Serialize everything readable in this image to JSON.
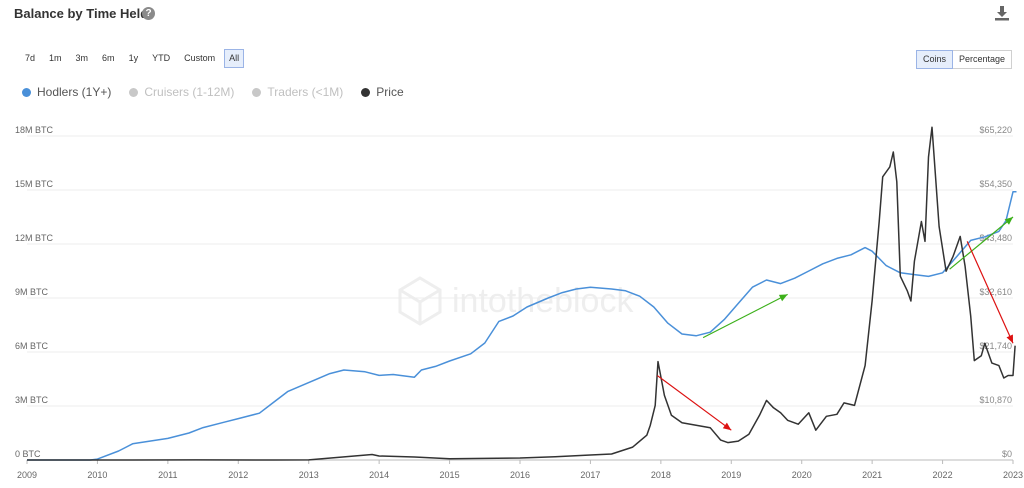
{
  "header": {
    "title": "Balance by Time Held",
    "help_icon": "?",
    "download_icon": "download-icon"
  },
  "ranges": [
    {
      "label": "7d",
      "active": false
    },
    {
      "label": "1m",
      "active": false
    },
    {
      "label": "3m",
      "active": false
    },
    {
      "label": "6m",
      "active": false
    },
    {
      "label": "1y",
      "active": false
    },
    {
      "label": "YTD",
      "active": false
    },
    {
      "label": "Custom",
      "active": false
    },
    {
      "label": "All",
      "active": true
    }
  ],
  "units": [
    {
      "label": "Coins",
      "active": true
    },
    {
      "label": "Percentage",
      "active": false
    }
  ],
  "legend": [
    {
      "name": "Hodlers (1Y+)",
      "color": "#4a90d9",
      "active": true
    },
    {
      "name": "Cruisers (1-12M)",
      "color": "#c8c8c8",
      "active": false
    },
    {
      "name": "Traders (<1M)",
      "color": "#c8c8c8",
      "active": false
    },
    {
      "name": "Price",
      "color": "#333333",
      "active": true
    }
  ],
  "watermark": "intotheblock",
  "chart_data": {
    "type": "line",
    "x_ticks": [
      "2009",
      "2010",
      "2011",
      "2012",
      "2013",
      "2014",
      "2015",
      "2016",
      "2017",
      "2018",
      "2019",
      "2020",
      "2021",
      "2022",
      "2023"
    ],
    "y_left_ticks": [
      "0 BTC",
      "3M BTC",
      "6M BTC",
      "9M BTC",
      "12M BTC",
      "15M BTC",
      "18M BTC"
    ],
    "y_right_ticks": [
      "$0",
      "$10,870",
      "$21,740",
      "$32,610",
      "$43,480",
      "$54,350",
      "$65,220"
    ],
    "ylim_left": [
      0,
      18000000
    ],
    "ylim_right": [
      0,
      65220
    ],
    "series": [
      {
        "name": "Hodlers (1Y+)",
        "axis": "left",
        "color": "#4a90d9",
        "points": [
          [
            2009.0,
            0
          ],
          [
            2009.9,
            0
          ],
          [
            2010.0,
            50000
          ],
          [
            2010.3,
            500000
          ],
          [
            2010.5,
            900000
          ],
          [
            2011.0,
            1200000
          ],
          [
            2011.3,
            1500000
          ],
          [
            2011.5,
            1800000
          ],
          [
            2011.8,
            2100000
          ],
          [
            2012.0,
            2300000
          ],
          [
            2012.3,
            2600000
          ],
          [
            2012.5,
            3200000
          ],
          [
            2012.7,
            3800000
          ],
          [
            2013.0,
            4300000
          ],
          [
            2013.3,
            4800000
          ],
          [
            2013.5,
            5000000
          ],
          [
            2013.8,
            4900000
          ],
          [
            2014.0,
            4700000
          ],
          [
            2014.2,
            4750000
          ],
          [
            2014.5,
            4600000
          ],
          [
            2014.6,
            5000000
          ],
          [
            2014.8,
            5200000
          ],
          [
            2015.0,
            5500000
          ],
          [
            2015.3,
            5900000
          ],
          [
            2015.5,
            6500000
          ],
          [
            2015.7,
            7700000
          ],
          [
            2015.9,
            8000000
          ],
          [
            2016.1,
            8500000
          ],
          [
            2016.4,
            9000000
          ],
          [
            2016.6,
            9300000
          ],
          [
            2016.8,
            9500000
          ],
          [
            2017.0,
            9600000
          ],
          [
            2017.3,
            9500000
          ],
          [
            2017.5,
            9400000
          ],
          [
            2017.7,
            9100000
          ],
          [
            2017.9,
            8500000
          ],
          [
            2018.1,
            7600000
          ],
          [
            2018.3,
            7000000
          ],
          [
            2018.5,
            6900000
          ],
          [
            2018.7,
            7100000
          ],
          [
            2018.9,
            7800000
          ],
          [
            2019.1,
            8700000
          ],
          [
            2019.3,
            9600000
          ],
          [
            2019.5,
            10000000
          ],
          [
            2019.7,
            9800000
          ],
          [
            2019.9,
            10100000
          ],
          [
            2020.1,
            10500000
          ],
          [
            2020.3,
            10900000
          ],
          [
            2020.5,
            11200000
          ],
          [
            2020.7,
            11400000
          ],
          [
            2020.9,
            11800000
          ],
          [
            2021.0,
            11600000
          ],
          [
            2021.2,
            10800000
          ],
          [
            2021.4,
            10400000
          ],
          [
            2021.6,
            10300000
          ],
          [
            2021.8,
            10200000
          ],
          [
            2022.0,
            10400000
          ],
          [
            2022.2,
            11300000
          ],
          [
            2022.4,
            12200000
          ],
          [
            2022.6,
            12400000
          ],
          [
            2022.8,
            12700000
          ],
          [
            2022.9,
            13300000
          ],
          [
            2023.0,
            14900000
          ],
          [
            2023.05,
            14900000
          ]
        ]
      },
      {
        "name": "Price",
        "axis": "right",
        "color": "#333333",
        "points": [
          [
            2009.0,
            0
          ],
          [
            2010.5,
            10
          ],
          [
            2011.4,
            30
          ],
          [
            2012.5,
            10
          ],
          [
            2013.0,
            20
          ],
          [
            2013.9,
            1100
          ],
          [
            2014.0,
            800
          ],
          [
            2014.5,
            600
          ],
          [
            2015.0,
            250
          ],
          [
            2016.0,
            400
          ],
          [
            2016.5,
            650
          ],
          [
            2017.0,
            1000
          ],
          [
            2017.3,
            1200
          ],
          [
            2017.6,
            2600
          ],
          [
            2017.8,
            5000
          ],
          [
            2017.85,
            7000
          ],
          [
            2017.92,
            11000
          ],
          [
            2017.96,
            19800
          ],
          [
            2018.05,
            13000
          ],
          [
            2018.15,
            9000
          ],
          [
            2018.3,
            7500
          ],
          [
            2018.5,
            7000
          ],
          [
            2018.7,
            6500
          ],
          [
            2018.85,
            4000
          ],
          [
            2018.95,
            3500
          ],
          [
            2019.1,
            3800
          ],
          [
            2019.25,
            5200
          ],
          [
            2019.4,
            9000
          ],
          [
            2019.5,
            12000
          ],
          [
            2019.6,
            10500
          ],
          [
            2019.7,
            9500
          ],
          [
            2019.8,
            8000
          ],
          [
            2019.95,
            7200
          ],
          [
            2020.1,
            9500
          ],
          [
            2020.2,
            6000
          ],
          [
            2020.35,
            8800
          ],
          [
            2020.5,
            9200
          ],
          [
            2020.6,
            11500
          ],
          [
            2020.75,
            11000
          ],
          [
            2020.9,
            19000
          ],
          [
            2021.0,
            32000
          ],
          [
            2021.1,
            48000
          ],
          [
            2021.15,
            57000
          ],
          [
            2021.25,
            59000
          ],
          [
            2021.3,
            62000
          ],
          [
            2021.35,
            56000
          ],
          [
            2021.4,
            37000
          ],
          [
            2021.5,
            34000
          ],
          [
            2021.55,
            32000
          ],
          [
            2021.6,
            40000
          ],
          [
            2021.7,
            48000
          ],
          [
            2021.75,
            44000
          ],
          [
            2021.8,
            61000
          ],
          [
            2021.85,
            67000
          ],
          [
            2021.95,
            47000
          ],
          [
            2022.05,
            38000
          ],
          [
            2022.15,
            41000
          ],
          [
            2022.25,
            45000
          ],
          [
            2022.32,
            39000
          ],
          [
            2022.4,
            29000
          ],
          [
            2022.45,
            20000
          ],
          [
            2022.55,
            21000
          ],
          [
            2022.6,
            23500
          ],
          [
            2022.7,
            19500
          ],
          [
            2022.8,
            19000
          ],
          [
            2022.87,
            16500
          ],
          [
            2022.93,
            17000
          ],
          [
            2023.0,
            17000
          ],
          [
            2023.03,
            23000
          ]
        ]
      }
    ],
    "annotations": [
      {
        "type": "arrow",
        "color": "#dd1111",
        "from": [
          2017.95,
          17000
        ],
        "to": [
          2019.0,
          6000
        ],
        "axis": "right"
      },
      {
        "type": "arrow",
        "color": "#3cb01a",
        "from": [
          2018.6,
          6800000
        ],
        "to": [
          2019.8,
          9200000
        ],
        "axis": "left"
      },
      {
        "type": "arrow",
        "color": "#3cb01a",
        "from": [
          2022.1,
          10600000
        ],
        "to": [
          2023.0,
          13500000
        ],
        "axis": "left"
      },
      {
        "type": "arrow",
        "color": "#dd1111",
        "from": [
          2022.35,
          44000
        ],
        "to": [
          2023.0,
          23500
        ],
        "axis": "right"
      }
    ]
  }
}
